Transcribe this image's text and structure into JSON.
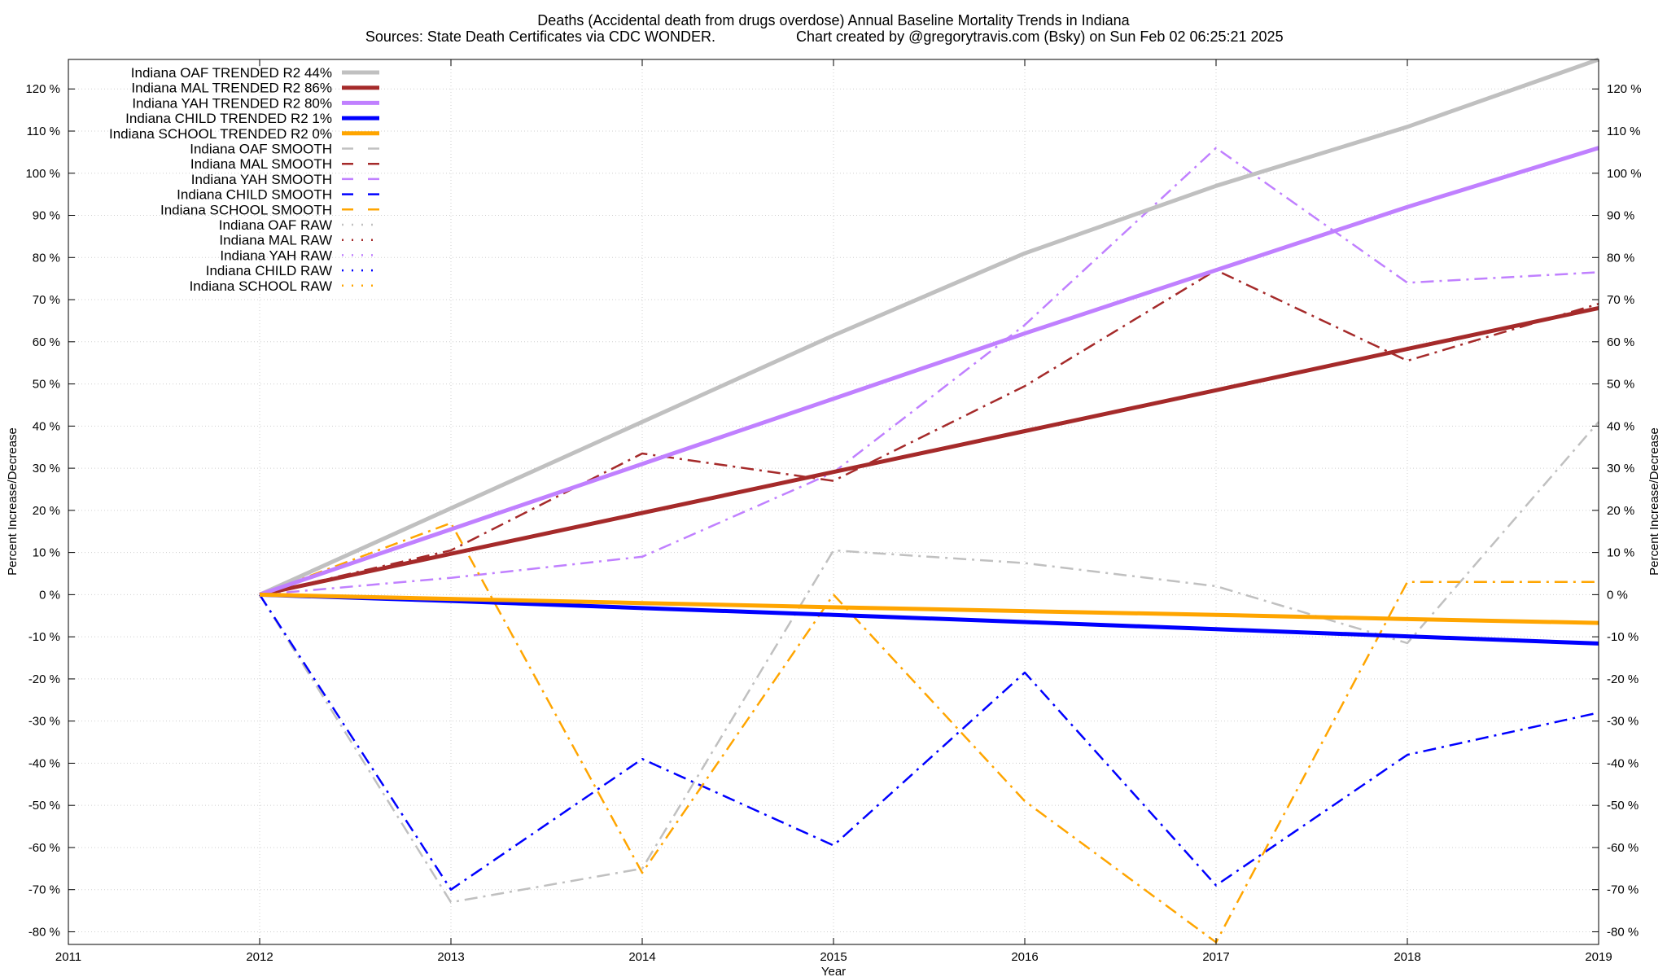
{
  "chart_data": {
    "type": "line",
    "title": "Deaths (Accidental death from drugs overdose)  Annual Baseline Mortality Trends in Indiana",
    "subtitle_left": "Sources: State Death Certificates via CDC WONDER.",
    "subtitle_right": "Chart created by @gregorytravis.com (Bsky) on Sun Feb 02 06:25:21 2025",
    "xlabel": "Year",
    "ylabel_left": "Percent Increase/Decrease",
    "ylabel_right": "Percent Increase/Decrease",
    "xlim": [
      2011,
      2019
    ],
    "ylim": [
      -83,
      127
    ],
    "x_ticks": [
      2011,
      2012,
      2013,
      2014,
      2015,
      2016,
      2017,
      2018,
      2019
    ],
    "y_ticks": [
      -80,
      -70,
      -60,
      -50,
      -40,
      -30,
      -20,
      -10,
      0,
      10,
      20,
      30,
      40,
      50,
      60,
      70,
      80,
      90,
      100,
      110,
      120
    ],
    "y_tick_suffix": " %",
    "grid": true,
    "legend_position": "top-left",
    "series": [
      {
        "name": "Indiana OAF TRENDED R2  44%",
        "style": "trend",
        "color": "#c0c0c0",
        "x": [
          2012,
          2013,
          2014,
          2015,
          2016,
          2017,
          2018,
          2019
        ],
        "values": [
          0,
          20.5,
          41,
          61.5,
          81,
          97,
          111,
          127
        ]
      },
      {
        "name": "Indiana MAL TRENDED R2  86%",
        "style": "trend",
        "color": "#a52a2a",
        "x": [
          2012,
          2013,
          2014,
          2015,
          2016,
          2017,
          2018,
          2019
        ],
        "values": [
          0,
          9.7,
          19.4,
          29.1,
          38.8,
          48.5,
          58.3,
          68
        ]
      },
      {
        "name": "Indiana YAH TRENDED R2  80%",
        "style": "trend",
        "color": "#c080ff",
        "x": [
          2012,
          2013,
          2014,
          2015,
          2016,
          2017,
          2018,
          2019
        ],
        "values": [
          0,
          15.5,
          31,
          46.5,
          62,
          77,
          92,
          106
        ]
      },
      {
        "name": "Indiana CHILD TRENDED R2  1%",
        "style": "trend",
        "color": "#0000ff",
        "x": [
          2012,
          2013,
          2014,
          2015,
          2016,
          2017,
          2018,
          2019
        ],
        "values": [
          0,
          -1.5,
          -3.2,
          -4.8,
          -6.5,
          -8.2,
          -9.9,
          -11.6
        ]
      },
      {
        "name": "Indiana SCHOOL TRENDED R2  0%",
        "style": "trend",
        "color": "#ffa500",
        "x": [
          2012,
          2013,
          2014,
          2015,
          2016,
          2017,
          2018,
          2019
        ],
        "values": [
          0,
          -1,
          -2,
          -3,
          -3.9,
          -4.8,
          -5.8,
          -6.7
        ]
      },
      {
        "name": "Indiana OAF SMOOTH",
        "style": "smooth",
        "color": "#c0c0c0",
        "x": [
          2012,
          2013,
          2014,
          2015,
          2016,
          2017,
          2018,
          2019
        ],
        "values": [
          0,
          -73,
          -65,
          10.5,
          7.5,
          2,
          -11.5,
          41
        ]
      },
      {
        "name": "Indiana MAL SMOOTH",
        "style": "smooth",
        "color": "#a52a2a",
        "x": [
          2012,
          2013,
          2014,
          2015,
          2016,
          2017,
          2018,
          2019
        ],
        "values": [
          0,
          10.5,
          33.5,
          27,
          49.5,
          77,
          55.5,
          69
        ]
      },
      {
        "name": "Indiana YAH SMOOTH",
        "style": "smooth",
        "color": "#c080ff",
        "x": [
          2012,
          2013,
          2014,
          2015,
          2016,
          2017,
          2018,
          2019
        ],
        "values": [
          0,
          4,
          9,
          29,
          64,
          106,
          74,
          76.5
        ]
      },
      {
        "name": "Indiana CHILD SMOOTH",
        "style": "smooth",
        "color": "#0000ff",
        "x": [
          2012,
          2013,
          2014,
          2015,
          2016,
          2017,
          2018,
          2019
        ],
        "values": [
          0,
          -70,
          -39,
          -59.5,
          -18.5,
          -69,
          -38,
          -28
        ]
      },
      {
        "name": "Indiana SCHOOL SMOOTH",
        "style": "smooth",
        "color": "#ffa500",
        "x": [
          2012,
          2013,
          2014,
          2015,
          2016,
          2017,
          2018,
          2019
        ],
        "values": [
          0,
          17,
          -66,
          0,
          -49,
          -82.5,
          3,
          3
        ]
      },
      {
        "name": "Indiana OAF RAW",
        "style": "raw",
        "color": "#c0c0c0",
        "x": [],
        "values": []
      },
      {
        "name": "Indiana MAL RAW",
        "style": "raw",
        "color": "#a52a2a",
        "x": [],
        "values": []
      },
      {
        "name": "Indiana YAH RAW",
        "style": "raw",
        "color": "#c080ff",
        "x": [],
        "values": []
      },
      {
        "name": "Indiana CHILD RAW",
        "style": "raw",
        "color": "#0000ff",
        "x": [],
        "values": []
      },
      {
        "name": "Indiana SCHOOL RAW",
        "style": "raw",
        "color": "#ffa500",
        "x": [],
        "values": []
      }
    ]
  }
}
